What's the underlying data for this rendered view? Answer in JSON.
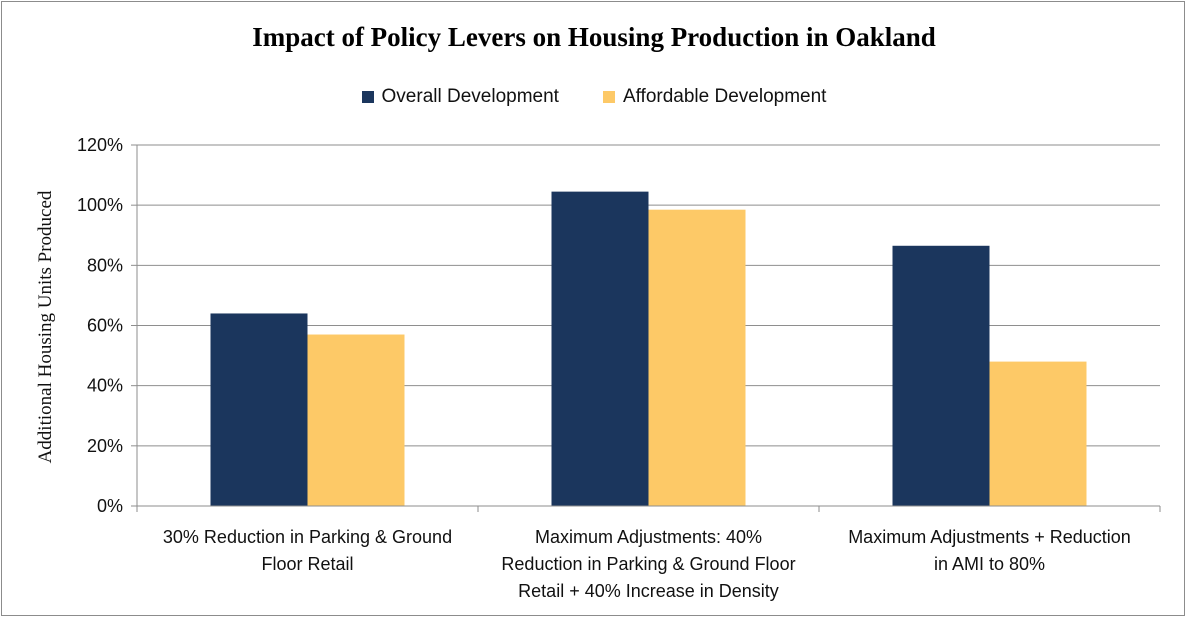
{
  "chart_data": {
    "type": "bar",
    "title": "Impact of Policy Levers on Housing Production in Oakland",
    "ylabel": "Additional Housing Units Produced",
    "xlabel": "",
    "ylim": [
      0,
      1.2
    ],
    "yticks": [
      "0%",
      "20%",
      "40%",
      "60%",
      "80%",
      "100%",
      "120%"
    ],
    "grid": true,
    "legend_position": "top",
    "categories": [
      [
        "30% Reduction in Parking & Ground",
        "Floor Retail"
      ],
      [
        "Maximum Adjustments: 40%",
        "Reduction in Parking & Ground Floor",
        "Retail + 40% Increase in Density"
      ],
      [
        "Maximum Adjustments + Reduction",
        "in AMI to 80%"
      ]
    ],
    "series": [
      {
        "name": "Overall Development",
        "color": "#1b365d",
        "values": [
          0.64,
          1.045,
          0.865
        ]
      },
      {
        "name": "Affordable Development",
        "color": "#fdc967",
        "values": [
          0.57,
          0.985,
          0.48
        ]
      }
    ]
  }
}
